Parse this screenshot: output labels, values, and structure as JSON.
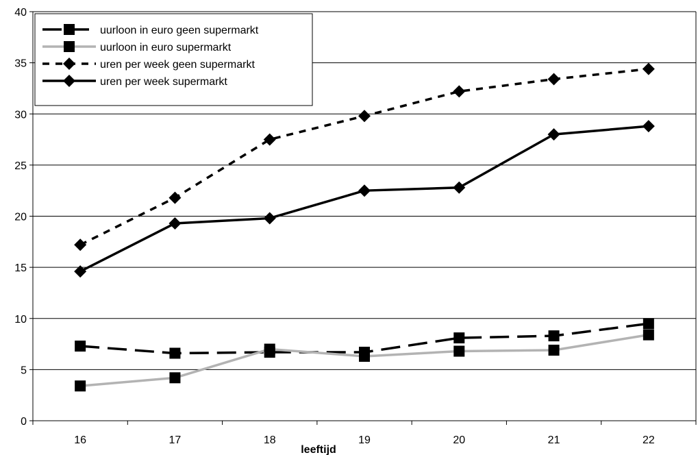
{
  "chart_data": {
    "type": "line",
    "title": "",
    "xlabel": "leeftijd",
    "ylabel": "",
    "categories": [
      "16",
      "17",
      "18",
      "19",
      "20",
      "21",
      "22"
    ],
    "ylim": [
      0,
      40
    ],
    "yticks": [
      0,
      5,
      10,
      15,
      20,
      25,
      30,
      35,
      40
    ],
    "grid": "horizontal",
    "legend_position": "top-left",
    "series": [
      {
        "name": "uurloon in euro geen supermarkt",
        "values": [
          7.3,
          6.6,
          6.7,
          6.7,
          8.1,
          8.3,
          9.5
        ],
        "color": "#000000",
        "line_style": "dashed",
        "marker": "square"
      },
      {
        "name": "uurloon in euro supermarkt",
        "values": [
          3.4,
          4.2,
          7.0,
          6.3,
          6.8,
          6.9,
          8.4
        ],
        "color": "#b3b3b3",
        "line_style": "solid",
        "marker": "square"
      },
      {
        "name": "uren per week geen supermarkt",
        "values": [
          17.2,
          21.8,
          27.5,
          29.8,
          32.2,
          33.4,
          34.4
        ],
        "color": "#000000",
        "line_style": "dotted",
        "marker": "diamond"
      },
      {
        "name": "uren per week supermarkt",
        "values": [
          14.6,
          19.3,
          19.8,
          22.5,
          22.8,
          28.0,
          28.8
        ],
        "color": "#000000",
        "line_style": "solid",
        "marker": "diamond"
      }
    ]
  }
}
